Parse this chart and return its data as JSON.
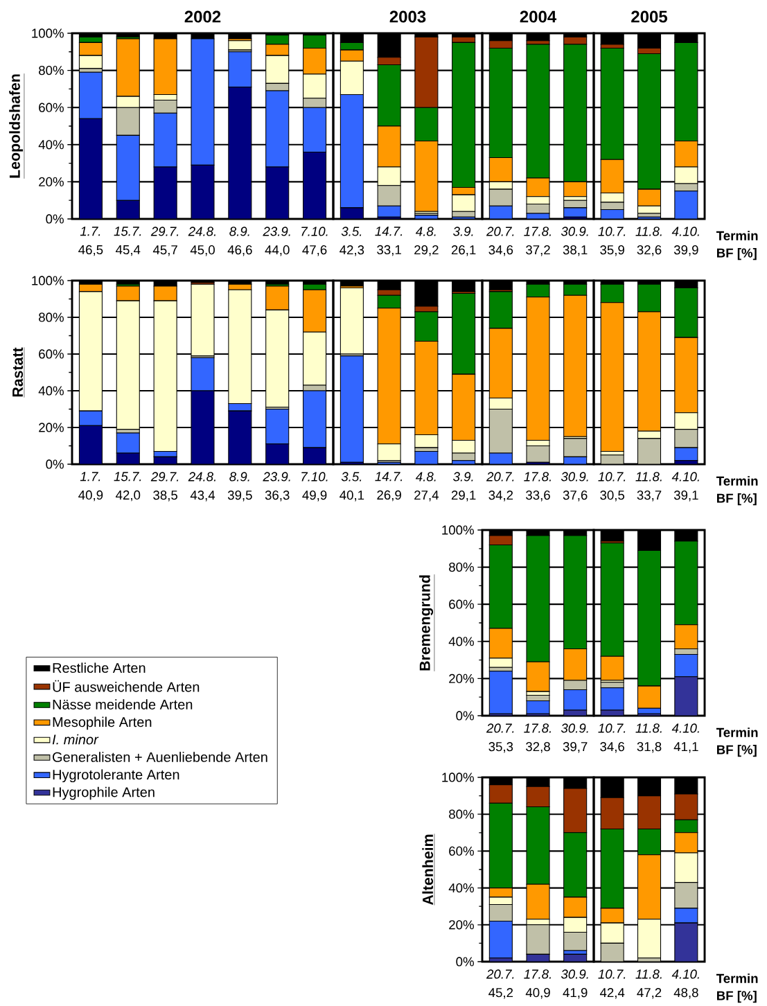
{
  "chart_data": [
    {
      "type": "bar",
      "stacked": true,
      "title": "2002",
      "ylabel": "Leopoldshafen",
      "categories": [
        "*1.7.* 46,5",
        "*15.7.* 45,4",
        "*29.7.* 45,7",
        "*24.8.* 45,0",
        "*8.9.* 46,6",
        "*23.9.* 44,0",
        "*7.10.* 47,6"
      ],
      "ylim": [
        0,
        100
      ],
      "yticks": [
        {
          "value": 0,
          "label": "0%"
        },
        {
          "value": 10,
          "label": null
        },
        {
          "value": 20,
          "label": "20%"
        },
        {
          "value": 30,
          "label": null
        },
        {
          "value": 40,
          "label": "40%"
        },
        {
          "value": 50,
          "label": null
        },
        {
          "value": 60,
          "label": "60%"
        },
        {
          "value": 70,
          "label": null
        },
        {
          "value": 80,
          "label": "80%"
        },
        {
          "value": 90,
          "label": null
        },
        {
          "value": 100,
          "label": "100%"
        }
      ],
      "grid": "y",
      "series": [
        {
          "color": "#000080",
          "values": [
            54,
            10,
            28,
            29,
            71,
            28,
            36
          ]
        },
        {
          "color": "#3366ff",
          "values": [
            25,
            35,
            29,
            68,
            19,
            41,
            24
          ]
        },
        {
          "color": "#c0c0a8",
          "values": [
            2,
            15,
            7,
            0,
            1,
            4,
            5
          ]
        },
        {
          "color": "#ffffcc",
          "values": [
            7,
            6,
            3,
            0,
            5,
            15,
            13
          ]
        },
        {
          "color": "#ff9900",
          "values": [
            7,
            31,
            30,
            0,
            1,
            6,
            14
          ]
        },
        {
          "color": "#008000",
          "values": [
            3,
            1,
            0,
            0,
            0,
            5,
            7
          ]
        },
        {
          "color": "#993300",
          "values": [
            0,
            0,
            0,
            0,
            0,
            0,
            0
          ]
        },
        {
          "color": "#000000",
          "values": [
            2,
            2,
            3,
            3,
            3,
            1,
            1
          ]
        }
      ]
    },
    {
      "type": "bar",
      "stacked": true,
      "title": "2003",
      "tick_labels": "x",
      "categories": [
        "*3.5.* 42,3",
        "*14.7.* 33,1",
        "*4.8.* 29,2",
        "*3.9.* 26,1"
      ],
      "ylim": [
        0,
        100
      ],
      "yticks": [
        0,
        20,
        40,
        60,
        80,
        100
      ],
      "grid": "y",
      "series": [
        {
          "color": "#000080",
          "values": [
            6,
            1,
            0,
            0
          ]
        },
        {
          "color": "#3366ff",
          "values": [
            61,
            6,
            2,
            1
          ]
        },
        {
          "color": "#c0c0a8",
          "values": [
            0,
            11,
            1,
            3
          ]
        },
        {
          "color": "#ffffcc",
          "values": [
            18,
            10,
            1,
            9
          ]
        },
        {
          "color": "#ff9900",
          "values": [
            6,
            22,
            38,
            4
          ]
        },
        {
          "color": "#008000",
          "values": [
            4,
            33,
            18,
            78
          ]
        },
        {
          "color": "#993300",
          "values": [
            0,
            4,
            38,
            3
          ]
        },
        {
          "color": "#000000",
          "values": [
            5,
            13,
            2,
            2
          ]
        }
      ]
    },
    {
      "type": "bar",
      "stacked": true,
      "title": "2004",
      "tick_labels": "x",
      "categories": [
        "*20.7.* 34,6",
        "*17.8.* 37,2",
        "*30.9.* 38,1"
      ],
      "ylim": [
        0,
        100
      ],
      "yticks": [
        0,
        20,
        40,
        60,
        80,
        100
      ],
      "grid": "y",
      "series": [
        {
          "color": "#000080",
          "values": [
            0,
            0,
            1
          ]
        },
        {
          "color": "#3366ff",
          "values": [
            7,
            3,
            5
          ]
        },
        {
          "color": "#c0c0a8",
          "values": [
            9,
            5,
            4
          ]
        },
        {
          "color": "#ffffcc",
          "values": [
            4,
            4,
            2
          ]
        },
        {
          "color": "#ff9900",
          "values": [
            13,
            10,
            8
          ]
        },
        {
          "color": "#008000",
          "values": [
            59,
            72,
            74
          ]
        },
        {
          "color": "#993300",
          "values": [
            4,
            2,
            4
          ]
        },
        {
          "color": "#000000",
          "values": [
            4,
            4,
            2
          ]
        }
      ]
    },
    {
      "type": "bar",
      "stacked": true,
      "title": "2005",
      "tick_labels": "x",
      "categories": [
        "*10.7.* 35,9",
        "*11.8.* 32,6",
        "*4.10.* 39,9"
      ],
      "ylim": [
        0,
        100
      ],
      "yticks": [
        0,
        20,
        40,
        60,
        80,
        100
      ],
      "grid": "y",
      "annotations": [
        "Termin",
        "BF [%]"
      ],
      "series": [
        {
          "color": "#000080",
          "values": [
            0,
            0,
            0
          ]
        },
        {
          "color": "#3366ff",
          "values": [
            5,
            1,
            15
          ]
        },
        {
          "color": "#c0c0a8",
          "values": [
            4,
            2,
            4
          ]
        },
        {
          "color": "#ffffcc",
          "values": [
            5,
            4,
            9
          ]
        },
        {
          "color": "#ff9900",
          "values": [
            18,
            9,
            14
          ]
        },
        {
          "color": "#008000",
          "values": [
            60,
            73,
            53
          ]
        },
        {
          "color": "#993300",
          "values": [
            2,
            3,
            0
          ]
        },
        {
          "color": "#000000",
          "values": [
            6,
            8,
            5
          ]
        }
      ]
    },
    {
      "type": "bar",
      "stacked": true,
      "ylabel": "Rastatt",
      "categories": [
        "*1.7.* 40,9",
        "*15.7.* 42,0",
        "*29.7.* 38,5",
        "*24.8.* 43,4",
        "*8.9.* 39,5",
        "*23.9.* 36,3",
        "*7.10.* 49,9"
      ],
      "ylim": [
        0,
        100
      ],
      "yticks": [
        {
          "value": 0,
          "label": "0%"
        },
        {
          "value": 10,
          "label": null
        },
        {
          "value": 20,
          "label": "20%"
        },
        {
          "value": 30,
          "label": null
        },
        {
          "value": 40,
          "label": "40%"
        },
        {
          "value": 50,
          "label": null
        },
        {
          "value": 60,
          "label": "60%"
        },
        {
          "value": 70,
          "label": null
        },
        {
          "value": 80,
          "label": "80%"
        },
        {
          "value": 90,
          "label": null
        },
        {
          "value": 100,
          "label": "100%"
        }
      ],
      "grid": "y",
      "series": [
        {
          "color": "#000080",
          "values": [
            21,
            6,
            4,
            40,
            29,
            11,
            9
          ]
        },
        {
          "color": "#3366ff",
          "values": [
            8,
            11,
            3,
            18,
            4,
            19,
            31
          ]
        },
        {
          "color": "#c0c0a8",
          "values": [
            0,
            2,
            0,
            1,
            0,
            1,
            3
          ]
        },
        {
          "color": "#ffffcc",
          "values": [
            65,
            70,
            82,
            39,
            62,
            53,
            29
          ]
        },
        {
          "color": "#ff9900",
          "values": [
            4,
            8,
            8,
            0,
            3,
            13,
            23
          ]
        },
        {
          "color": "#008000",
          "values": [
            0,
            1,
            0,
            0,
            0,
            1,
            3
          ]
        },
        {
          "color": "#993300",
          "values": [
            0,
            0,
            0,
            1,
            0,
            0,
            0
          ]
        },
        {
          "color": "#000000",
          "values": [
            2,
            2,
            3,
            1,
            2,
            2,
            2
          ]
        }
      ]
    },
    {
      "type": "bar",
      "stacked": true,
      "tick_labels": "x",
      "categories": [
        "*3.5.* 40,1",
        "*14.7.* 26,9",
        "*4.8.* 27,4",
        "*3.9.* 29,1"
      ],
      "ylim": [
        0,
        100
      ],
      "yticks": [
        0,
        20,
        40,
        60,
        80,
        100
      ],
      "grid": "y",
      "series": [
        {
          "color": "#000080",
          "values": [
            1,
            0,
            0,
            0
          ]
        },
        {
          "color": "#3366ff",
          "values": [
            58,
            1,
            7,
            2
          ]
        },
        {
          "color": "#c0c0a8",
          "values": [
            1,
            1,
            2,
            4
          ]
        },
        {
          "color": "#ffffcc",
          "values": [
            36,
            9,
            7,
            7
          ]
        },
        {
          "color": "#ff9900",
          "values": [
            1,
            74,
            51,
            36
          ]
        },
        {
          "color": "#008000",
          "values": [
            0,
            7,
            16,
            44
          ]
        },
        {
          "color": "#993300",
          "values": [
            0,
            3,
            3,
            1
          ]
        },
        {
          "color": "#000000",
          "values": [
            3,
            5,
            14,
            6
          ]
        }
      ]
    },
    {
      "type": "bar",
      "stacked": true,
      "tick_labels": "x",
      "categories": [
        "*20.7.* 34,2",
        "*17.8.* 33,6",
        "*30.9.* 37,6"
      ],
      "ylim": [
        0,
        100
      ],
      "yticks": [
        0,
        20,
        40,
        60,
        80,
        100
      ],
      "grid": "y",
      "series": [
        {
          "color": "#000080",
          "values": [
            0,
            1,
            0
          ]
        },
        {
          "color": "#3366ff",
          "values": [
            6,
            0,
            4
          ]
        },
        {
          "color": "#c0c0a8",
          "values": [
            24,
            9,
            10
          ]
        },
        {
          "color": "#ffffcc",
          "values": [
            6,
            3,
            1
          ]
        },
        {
          "color": "#ff9900",
          "values": [
            38,
            78,
            77
          ]
        },
        {
          "color": "#008000",
          "values": [
            20,
            7,
            6
          ]
        },
        {
          "color": "#993300",
          "values": [
            1,
            0,
            0
          ]
        },
        {
          "color": "#000000",
          "values": [
            5,
            2,
            2
          ]
        }
      ]
    },
    {
      "type": "bar",
      "stacked": true,
      "tick_labels": "x",
      "categories": [
        "*10.7.* 30,5",
        "*11.8.* 33,7",
        "*4.10.* 39,1"
      ],
      "ylim": [
        0,
        100
      ],
      "yticks": [
        0,
        20,
        40,
        60,
        80,
        100
      ],
      "grid": "y",
      "annotations": [
        "Termin",
        "BF [%]"
      ],
      "series": [
        {
          "color": "#000080",
          "values": [
            0,
            0,
            2
          ]
        },
        {
          "color": "#3366ff",
          "values": [
            0,
            0,
            7
          ]
        },
        {
          "color": "#c0c0a8",
          "values": [
            5,
            14,
            10
          ]
        },
        {
          "color": "#ffffcc",
          "values": [
            2,
            4,
            9
          ]
        },
        {
          "color": "#ff9900",
          "values": [
            81,
            65,
            41
          ]
        },
        {
          "color": "#008000",
          "values": [
            10,
            15,
            27
          ]
        },
        {
          "color": "#993300",
          "values": [
            0,
            0,
            0
          ]
        },
        {
          "color": "#000000",
          "values": [
            2,
            2,
            4
          ]
        }
      ]
    },
    {
      "type": "bar",
      "stacked": true,
      "ylabel": "Bremengrund",
      "legend": "left",
      "categories": [
        "*20.7.* 35,3",
        "*17.8.* 32,8",
        "*30.9.* 39,7"
      ],
      "ylim": [
        0,
        100
      ],
      "yticks": [
        {
          "value": 0,
          "label": "0%"
        },
        {
          "value": 10,
          "label": null
        },
        {
          "value": 20,
          "label": "20%"
        },
        {
          "value": 30,
          "label": null
        },
        {
          "value": 40,
          "label": "40%"
        },
        {
          "value": 50,
          "label": null
        },
        {
          "value": 60,
          "label": "60%"
        },
        {
          "value": 70,
          "label": null
        },
        {
          "value": 80,
          "label": "80%"
        },
        {
          "value": 90,
          "label": null
        },
        {
          "value": 100,
          "label": "100%"
        }
      ],
      "grid": "y",
      "series": [
        {
          "name": "Hygrophile Arten",
          "color": "#333399",
          "values": [
            1,
            1,
            3
          ]
        },
        {
          "name": "Hygrotolerante Arten",
          "color": "#3366ff",
          "values": [
            23,
            7,
            11
          ]
        },
        {
          "name": "Generalisten + Auenliebende Arten",
          "color": "#c0c0a8",
          "values": [
            2,
            3,
            5
          ]
        },
        {
          "name": "*I. minor*",
          "color": "#ffffcc",
          "values": [
            5,
            2,
            0
          ]
        },
        {
          "name": "Mesophile Arten",
          "color": "#ff9900",
          "values": [
            16,
            16,
            17
          ]
        },
        {
          "name": "Nässe meidende Arten",
          "color": "#008000",
          "values": [
            45,
            68,
            61
          ]
        },
        {
          "name": "ÜF ausweichende Arten",
          "color": "#993300",
          "values": [
            5,
            0,
            0
          ]
        },
        {
          "name": "Restliche Arten",
          "color": "#000000",
          "values": [
            3,
            3,
            3
          ]
        }
      ]
    },
    {
      "type": "bar",
      "stacked": true,
      "tick_labels": "x",
      "categories": [
        "*10.7.* 34,6",
        "*11.8.* 31,8",
        "*4.10.* 41,1"
      ],
      "ylim": [
        0,
        100
      ],
      "yticks": [
        0,
        20,
        40,
        60,
        80,
        100
      ],
      "grid": "y",
      "annotations": [
        "Termin",
        "BF [%]"
      ],
      "series": [
        {
          "color": "#333399",
          "values": [
            3,
            1,
            21
          ]
        },
        {
          "color": "#3366ff",
          "values": [
            12,
            3,
            12
          ]
        },
        {
          "color": "#c0c0a8",
          "values": [
            3,
            0,
            3
          ]
        },
        {
          "color": "#ffffcc",
          "values": [
            1,
            0,
            0
          ]
        },
        {
          "color": "#ff9900",
          "values": [
            13,
            12,
            13
          ]
        },
        {
          "color": "#008000",
          "values": [
            61,
            73,
            45
          ]
        },
        {
          "color": "#993300",
          "values": [
            1,
            0,
            0
          ]
        },
        {
          "color": "#000000",
          "values": [
            6,
            11,
            6
          ]
        }
      ]
    },
    {
      "type": "bar",
      "stacked": true,
      "ylabel": "Altenheim",
      "categories": [
        "*20.7.* 45,2",
        "*17.8.* 40,9",
        "*30.9.* 41,9"
      ],
      "ylim": [
        0,
        100
      ],
      "yticks": [
        {
          "value": 0,
          "label": "0%"
        },
        {
          "value": 10,
          "label": null
        },
        {
          "value": 20,
          "label": "20%"
        },
        {
          "value": 30,
          "label": null
        },
        {
          "value": 40,
          "label": "40%"
        },
        {
          "value": 50,
          "label": null
        },
        {
          "value": 60,
          "label": "60%"
        },
        {
          "value": 70,
          "label": null
        },
        {
          "value": 80,
          "label": "80%"
        },
        {
          "value": 90,
          "label": null
        },
        {
          "value": 100,
          "label": "100%"
        }
      ],
      "grid": "y",
      "series": [
        {
          "color": "#333399",
          "values": [
            2,
            4,
            4
          ]
        },
        {
          "color": "#3366ff",
          "values": [
            20,
            0,
            2
          ]
        },
        {
          "color": "#c0c0a8",
          "values": [
            9,
            16,
            10
          ]
        },
        {
          "color": "#ffffcc",
          "values": [
            4,
            3,
            8
          ]
        },
        {
          "color": "#ff9900",
          "values": [
            5,
            19,
            11
          ]
        },
        {
          "color": "#008000",
          "values": [
            46,
            42,
            35
          ]
        },
        {
          "color": "#993300",
          "values": [
            10,
            11,
            24
          ]
        },
        {
          "color": "#000000",
          "values": [
            4,
            5,
            6
          ]
        }
      ]
    },
    {
      "type": "bar",
      "stacked": true,
      "tick_labels": "x",
      "categories": [
        "*10.7.* 42,4",
        "*11.8.* 47,2",
        "*4.10.* 48,8"
      ],
      "ylim": [
        0,
        100
      ],
      "yticks": [
        0,
        20,
        40,
        60,
        80,
        100
      ],
      "grid": "y",
      "annotations": [
        "Termin",
        "BF [%]"
      ],
      "series": [
        {
          "color": "#333399",
          "values": [
            0,
            0,
            21
          ]
        },
        {
          "color": "#3366ff",
          "values": [
            0,
            0,
            8
          ]
        },
        {
          "color": "#c0c0a8",
          "values": [
            10,
            2,
            14
          ]
        },
        {
          "color": "#ffffcc",
          "values": [
            11,
            21,
            16
          ]
        },
        {
          "color": "#ff9900",
          "values": [
            8,
            35,
            11
          ]
        },
        {
          "color": "#008000",
          "values": [
            43,
            14,
            7
          ]
        },
        {
          "color": "#993300",
          "values": [
            17,
            18,
            14
          ]
        },
        {
          "color": "#000000",
          "values": [
            11,
            10,
            9
          ]
        }
      ]
    }
  ]
}
